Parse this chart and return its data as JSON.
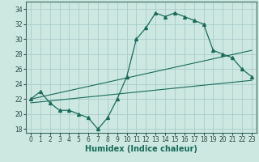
{
  "xlabel": "Humidex (Indice chaleur)",
  "bg_color": "#cce8e0",
  "line_color": "#1a6b5a",
  "grid_color": "#aacccc",
  "xlim": [
    -0.5,
    23.5
  ],
  "ylim": [
    17.5,
    35.0
  ],
  "xticks": [
    0,
    1,
    2,
    3,
    4,
    5,
    6,
    7,
    8,
    9,
    10,
    11,
    12,
    13,
    14,
    15,
    16,
    17,
    18,
    19,
    20,
    21,
    22,
    23
  ],
  "yticks": [
    18,
    20,
    22,
    24,
    26,
    28,
    30,
    32,
    34
  ],
  "series1_x": [
    0,
    1,
    2,
    3,
    4,
    5,
    6,
    7,
    8,
    9,
    10,
    11,
    12,
    13,
    14,
    15,
    16,
    17,
    18,
    19,
    20,
    21,
    22,
    23
  ],
  "series1_y": [
    22.0,
    23.0,
    21.5,
    20.5,
    20.5,
    20.0,
    19.5,
    18.0,
    19.5,
    22.0,
    25.0,
    30.0,
    31.5,
    33.5,
    33.0,
    33.5,
    33.0,
    32.5,
    32.0,
    28.5,
    28.0,
    27.5,
    26.0,
    25.0
  ],
  "series2_x": [
    0,
    23
  ],
  "series2_y": [
    22.0,
    28.5
  ],
  "series3_x": [
    0,
    23
  ],
  "series3_y": [
    21.5,
    24.5
  ],
  "xlabel_fontsize": 7,
  "tick_fontsize": 5.5
}
